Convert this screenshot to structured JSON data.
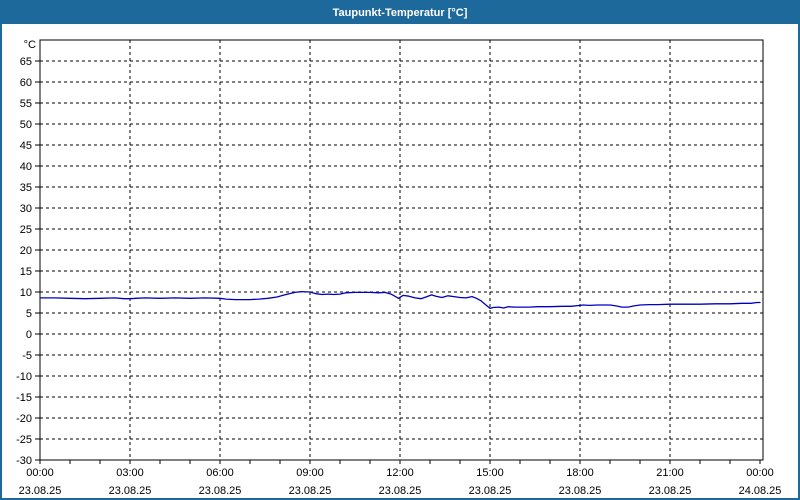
{
  "window": {
    "title": "Taupunkt-Temperatur [°C]",
    "titlebar_color": "#1e699c",
    "border_color": "#1e699c",
    "background": "#ffffff"
  },
  "chart_data": {
    "type": "line",
    "title": "Taupunkt-Temperatur [°C]",
    "ylabel": "°C",
    "xlabel": "",
    "ylim": [
      -30,
      70
    ],
    "xlim_hours": [
      0,
      24
    ],
    "grid": true,
    "grid_style": "dashed",
    "axis_color": "#000000",
    "grid_color": "#000000",
    "text_color": "#000000",
    "y_tick_step": 5,
    "y_ticks": [
      65,
      60,
      55,
      50,
      45,
      40,
      35,
      30,
      25,
      20,
      15,
      10,
      5,
      0,
      -5,
      -10,
      -15,
      -20,
      -25,
      -30
    ],
    "x_ticks": [
      {
        "hours": 0,
        "time": "00:00",
        "date": "23.08.25"
      },
      {
        "hours": 3,
        "time": "03:00",
        "date": "23.08.25"
      },
      {
        "hours": 6,
        "time": "06:00",
        "date": "23.08.25"
      },
      {
        "hours": 9,
        "time": "09:00",
        "date": "23.08.25"
      },
      {
        "hours": 12,
        "time": "12:00",
        "date": "23.08.25"
      },
      {
        "hours": 15,
        "time": "15:00",
        "date": "23.08.25"
      },
      {
        "hours": 18,
        "time": "18:00",
        "date": "23.08.25"
      },
      {
        "hours": 21,
        "time": "21:00",
        "date": "23.08.25"
      },
      {
        "hours": 24,
        "time": "00:00",
        "date": "24.08.25"
      }
    ],
    "series": [
      {
        "name": "Taupunkt-Temperatur",
        "color": "#0000bb",
        "points": [
          [
            0,
            8.6
          ],
          [
            0.5,
            8.6
          ],
          [
            1,
            8.5
          ],
          [
            1.5,
            8.4
          ],
          [
            2,
            8.5
          ],
          [
            2.5,
            8.6
          ],
          [
            2.8,
            8.4
          ],
          [
            3,
            8.4
          ],
          [
            3.2,
            8.5
          ],
          [
            3.5,
            8.6
          ],
          [
            4,
            8.5
          ],
          [
            4.5,
            8.6
          ],
          [
            5,
            8.5
          ],
          [
            5.5,
            8.6
          ],
          [
            6,
            8.5
          ],
          [
            6.2,
            8.3
          ],
          [
            6.5,
            8.2
          ],
          [
            7,
            8.2
          ],
          [
            7.3,
            8.3
          ],
          [
            7.6,
            8.5
          ],
          [
            7.9,
            8.8
          ],
          [
            8.2,
            9.4
          ],
          [
            8.5,
            9.9
          ],
          [
            8.7,
            10.1
          ],
          [
            9,
            10.0
          ],
          [
            9.2,
            9.6
          ],
          [
            9.4,
            9.4
          ],
          [
            9.6,
            9.5
          ],
          [
            9.8,
            9.4
          ],
          [
            10,
            9.5
          ],
          [
            10.2,
            9.8
          ],
          [
            10.5,
            9.9
          ],
          [
            10.8,
            9.9
          ],
          [
            11,
            9.9
          ],
          [
            11.3,
            9.8
          ],
          [
            11.5,
            9.9
          ],
          [
            11.7,
            9.5
          ],
          [
            11.85,
            8.9
          ],
          [
            11.95,
            8.5
          ],
          [
            12.1,
            9.2
          ],
          [
            12.3,
            9.0
          ],
          [
            12.5,
            8.6
          ],
          [
            12.7,
            8.4
          ],
          [
            12.9,
            8.9
          ],
          [
            13.05,
            9.3
          ],
          [
            13.2,
            9.0
          ],
          [
            13.4,
            8.7
          ],
          [
            13.6,
            9.1
          ],
          [
            13.8,
            8.9
          ],
          [
            14,
            8.7
          ],
          [
            14.2,
            8.6
          ],
          [
            14.4,
            8.9
          ],
          [
            14.55,
            8.5
          ],
          [
            14.7,
            7.9
          ],
          [
            14.85,
            7.0
          ],
          [
            15,
            6.1
          ],
          [
            15.1,
            6.3
          ],
          [
            15.3,
            6.4
          ],
          [
            15.45,
            6.2
          ],
          [
            15.6,
            6.5
          ],
          [
            15.8,
            6.4
          ],
          [
            16,
            6.4
          ],
          [
            16.3,
            6.4
          ],
          [
            16.6,
            6.5
          ],
          [
            17,
            6.5
          ],
          [
            17.4,
            6.6
          ],
          [
            17.7,
            6.6
          ],
          [
            18,
            6.8
          ],
          [
            18.1,
            6.9
          ],
          [
            18.3,
            6.8
          ],
          [
            18.6,
            6.9
          ],
          [
            19,
            6.9
          ],
          [
            19.2,
            6.7
          ],
          [
            19.4,
            6.4
          ],
          [
            19.6,
            6.4
          ],
          [
            19.8,
            6.7
          ],
          [
            20,
            6.9
          ],
          [
            20.3,
            7.0
          ],
          [
            20.6,
            7.0
          ],
          [
            21,
            7.1
          ],
          [
            21.5,
            7.1
          ],
          [
            22,
            7.1
          ],
          [
            22.5,
            7.2
          ],
          [
            23,
            7.2
          ],
          [
            23.4,
            7.3
          ],
          [
            23.7,
            7.3
          ],
          [
            23.9,
            7.5
          ],
          [
            24,
            7.5
          ]
        ]
      }
    ]
  }
}
